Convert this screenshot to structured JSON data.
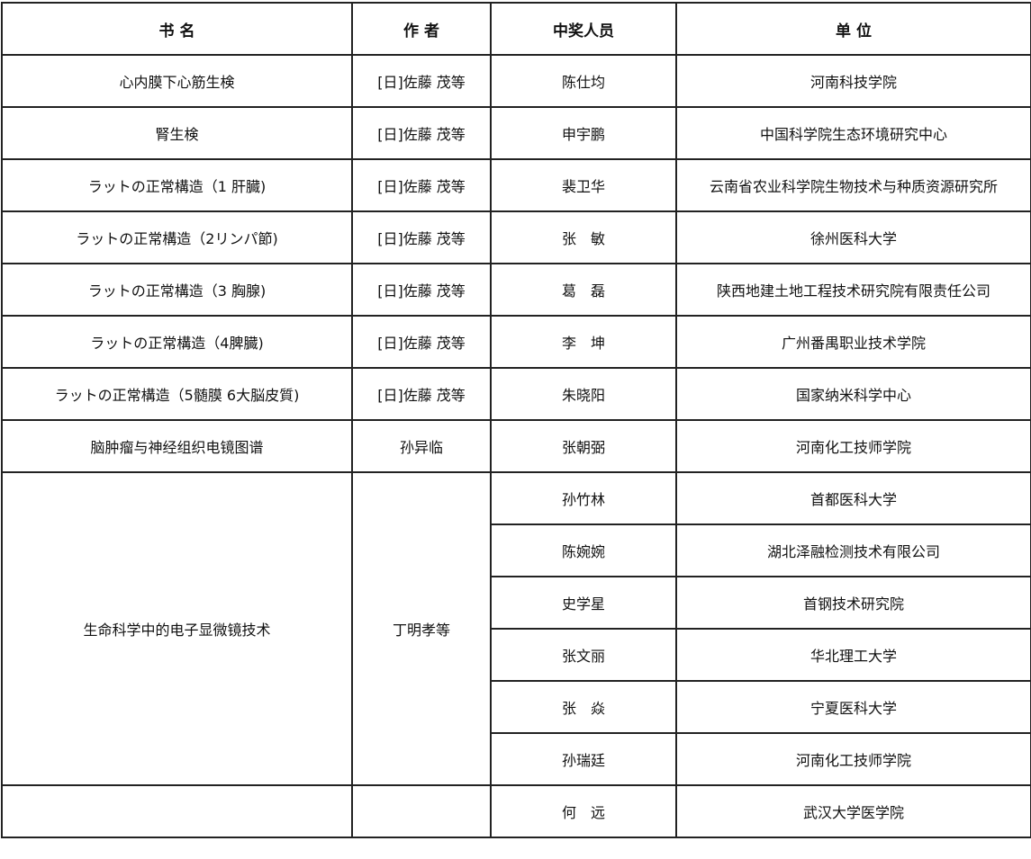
{
  "headers": [
    "书 名",
    "作 者",
    "中奖人员",
    "单 位"
  ],
  "rows": [
    {
      "book": "心内膜下心筋生検",
      "author": "[日]佐藤 茂等",
      "winner": "陈仕均",
      "unit": "河南科技学院"
    },
    {
      "book": "腎生検",
      "author": "[日]佐藤 茂等",
      "winner": "申宇鹏",
      "unit": "中国科学院生态环境研究中心"
    },
    {
      "book": "ラットの正常構造（1 肝臓)",
      "author": "[日]佐藤 茂等",
      "winner": "裴卫华",
      "unit": "云南省农业科学院生物技术与种质资源研究所"
    },
    {
      "book": "ラットの正常構造（2リンパ節)",
      "author": "[日]佐藤 茂等",
      "winner": "张　敏",
      "unit": "徐州医科大学"
    },
    {
      "book": "ラットの正常構造（3 胸腺)",
      "author": "[日]佐藤 茂等",
      "winner": "葛　磊",
      "unit": "陕西地建土地工程技术研究院有限责任公司"
    },
    {
      "book": "ラットの正常構造（4脾臓)",
      "author": "[日]佐藤 茂等",
      "winner": "李　坤",
      "unit": "广州番禺职业技术学院"
    },
    {
      "book": "ラットの正常構造（5髄膜 6大脳皮質)",
      "author": "[日]佐藤 茂等",
      "winner": "朱晓阳",
      "unit": "国家纳米科学中心"
    },
    {
      "book": "脑肿瘤与神经组织电镜图谱",
      "author": "孙异临",
      "winner": "张朝弼",
      "unit": "河南化工技师学院"
    }
  ],
  "group": {
    "book": "生命科学中的电子显微镜技术",
    "author": "丁明孝等",
    "winners": [
      {
        "winner": "孙竹林",
        "unit": "首都医科大学"
      },
      {
        "winner": "陈婉婉",
        "unit": "湖北泽融检测技术有限公司"
      },
      {
        "winner": "史学星",
        "unit": "首钢技术研究院"
      },
      {
        "winner": "张文丽",
        "unit": "华北理工大学"
      },
      {
        "winner": "张　焱",
        "unit": "宁夏医科大学"
      },
      {
        "winner": "孙瑞廷",
        "unit": "河南化工技师学院"
      }
    ]
  },
  "last_row": {
    "book": "",
    "author": "",
    "winner": "何　远",
    "unit": "武汉大学医学院"
  }
}
